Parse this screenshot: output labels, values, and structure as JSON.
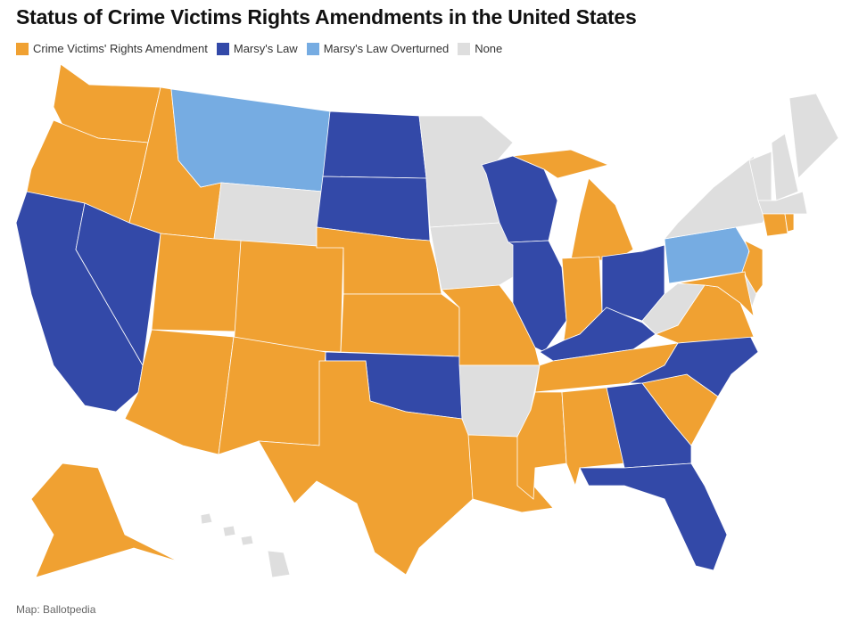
{
  "title": "Status of Crime Victims Rights Amendments in the United States",
  "legend": [
    {
      "key": "cvra",
      "label": "Crime Victims' Rights Amendment",
      "color": "#F0A132"
    },
    {
      "key": "marsy",
      "label": "Marsy's Law",
      "color": "#3349A8"
    },
    {
      "key": "overturned",
      "label": "Marsy's Law Overturned",
      "color": "#76ACE2"
    },
    {
      "key": "none",
      "label": "None",
      "color": "#DEDEDE"
    }
  ],
  "states": {
    "Washington": "cvra",
    "Oregon": "cvra",
    "California": "marsy",
    "Nevada": "marsy",
    "Idaho": "cvra",
    "Montana": "overturned",
    "Wyoming": "none",
    "Utah": "cvra",
    "Colorado": "cvra",
    "Arizona": "cvra",
    "New Mexico": "cvra",
    "North Dakota": "marsy",
    "South Dakota": "marsy",
    "Nebraska": "cvra",
    "Kansas": "cvra",
    "Oklahoma": "marsy",
    "Texas": "cvra",
    "Minnesota": "none",
    "Iowa": "none",
    "Missouri": "cvra",
    "Arkansas": "none",
    "Louisiana": "cvra",
    "Wisconsin": "marsy",
    "Illinois": "marsy",
    "Michigan": "cvra",
    "Indiana": "cvra",
    "Ohio": "marsy",
    "Kentucky": "marsy",
    "Tennessee": "cvra",
    "Mississippi": "cvra",
    "Alabama": "cvra",
    "Georgia": "marsy",
    "Florida": "marsy",
    "South Carolina": "cvra",
    "North Carolina": "marsy",
    "Virginia": "cvra",
    "West Virginia": "none",
    "Pennsylvania": "overturned",
    "New York": "none",
    "New Jersey": "cvra",
    "Maryland": "cvra",
    "Delaware": "none",
    "Vermont": "none",
    "New Hampshire": "none",
    "Maine": "none",
    "Massachusetts": "none",
    "Connecticut": "cvra",
    "Rhode Island": "cvra",
    "Alaska": "cvra",
    "Hawaii": "none"
  },
  "footer": "Map: Ballotpedia"
}
